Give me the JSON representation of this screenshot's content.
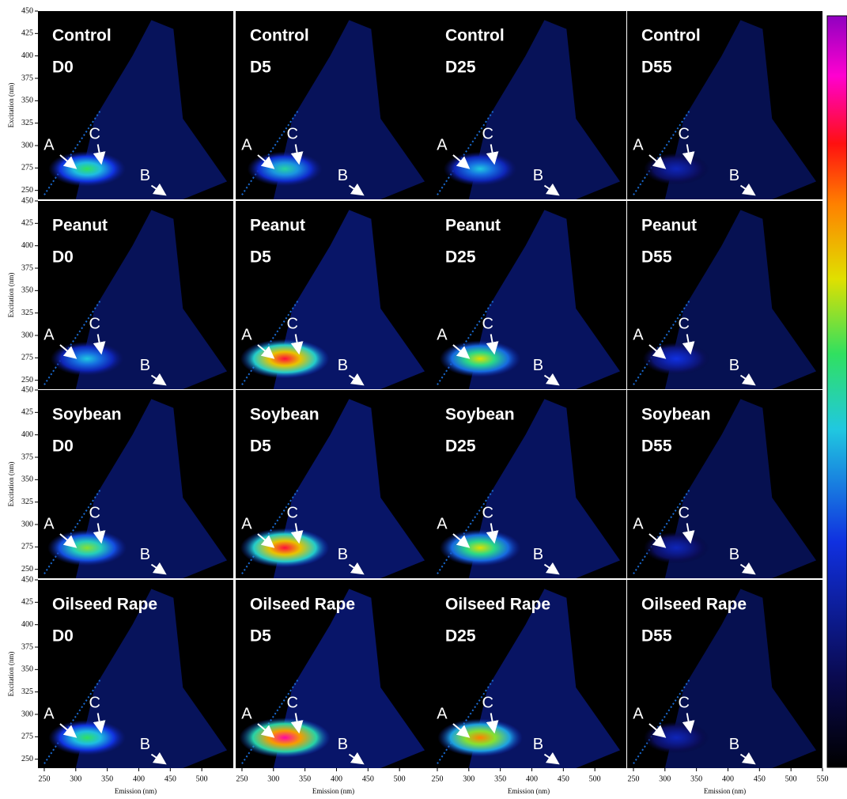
{
  "rows": [
    "Control",
    "Peanut",
    "Soybean",
    "Oilseed Rape"
  ],
  "columns": [
    "D0",
    "D5",
    "D25",
    "D55"
  ],
  "peaks": [
    "A",
    "B",
    "C"
  ],
  "x_axis": {
    "title": "Emission (nm)",
    "lim": [
      240,
      550
    ],
    "ticks": [
      250,
      300,
      350,
      400,
      450,
      500,
      550
    ]
  },
  "y_axis": {
    "title": "Excitation (nm)",
    "lim": [
      240,
      450
    ],
    "ticks": [
      250,
      275,
      300,
      325,
      350,
      375,
      400,
      425,
      450
    ]
  },
  "relative_intensity": [
    [
      0.55,
      0.5,
      0.45,
      0.25
    ],
    [
      0.45,
      0.85,
      0.65,
      0.3
    ],
    [
      0.6,
      0.85,
      0.65,
      0.25
    ],
    [
      0.55,
      0.9,
      0.75,
      0.25
    ]
  ]
}
